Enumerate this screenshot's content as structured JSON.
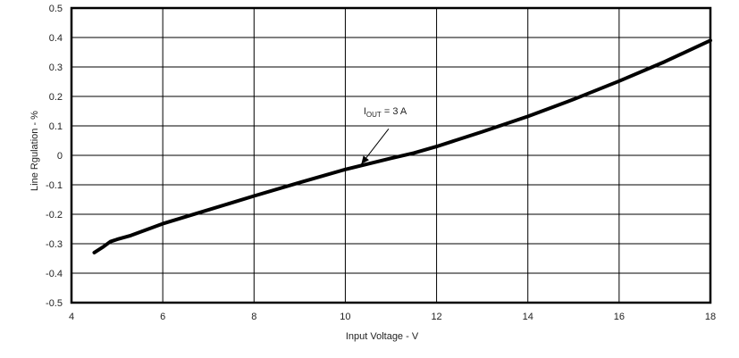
{
  "chart_data": {
    "type": "line",
    "title": "",
    "xlabel": "Input Voltage - V",
    "ylabel": "Line Rgulation - %",
    "xlim": [
      4,
      18
    ],
    "ylim": [
      -0.5,
      0.5
    ],
    "x_ticks": [
      4,
      6,
      8,
      10,
      12,
      14,
      16,
      18
    ],
    "y_ticks": [
      0.5,
      0.4,
      0.3,
      0.2,
      0.1,
      0,
      -0.1,
      -0.2,
      -0.3,
      -0.4,
      -0.5
    ],
    "x_tick_labels": [
      "4",
      "6",
      "8",
      "10",
      "12",
      "14",
      "16",
      "18"
    ],
    "y_tick_labels": [
      "0.5",
      "0.4",
      "0.3",
      "0.2",
      "0.1",
      "0",
      "-0.1",
      "-0.2",
      "-0.3",
      "-0.4",
      "-0.5"
    ],
    "grid": true,
    "legend": null,
    "series": [
      {
        "name": "IOUT = 3 A",
        "x": [
          4.5,
          4.7,
          4.85,
          5.0,
          5.3,
          6.0,
          7.0,
          8.0,
          9.0,
          10.0,
          11.0,
          11.5,
          12.0,
          13.0,
          14.0,
          15.0,
          16.0,
          17.0,
          18.0
        ],
        "values": [
          -0.33,
          -0.31,
          -0.293,
          -0.285,
          -0.272,
          -0.232,
          -0.185,
          -0.138,
          -0.092,
          -0.048,
          -0.01,
          0.008,
          0.03,
          0.08,
          0.132,
          0.19,
          0.252,
          0.318,
          0.39
        ]
      }
    ],
    "annotations": [
      {
        "text_main": "I",
        "text_sub": "OUT",
        "text_rest": " = 3 A",
        "label_x": 10.4,
        "label_y": 0.14,
        "arrow_from": [
          10.95,
          0.09
        ],
        "arrow_to": [
          10.35,
          -0.03
        ]
      }
    ]
  }
}
